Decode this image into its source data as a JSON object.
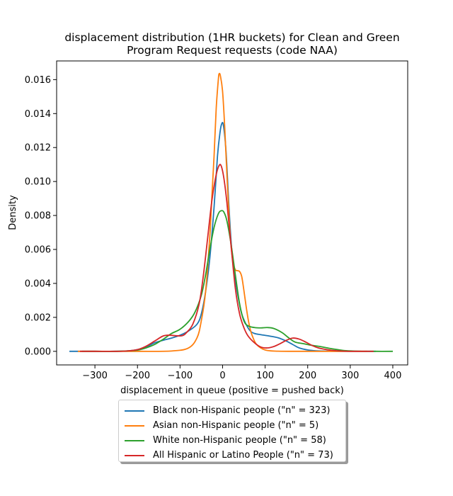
{
  "chart_data": {
    "type": "line",
    "title": "displacement distribution (1HR buckets) for Clean and Green\nProgram Request requests (code NAA)",
    "title_lines": [
      "displacement distribution (1HR buckets) for Clean and Green",
      "Program Request requests (code NAA)"
    ],
    "xlabel": "displacement in queue (positive = pushed back)",
    "ylabel": "Density",
    "xlim": [
      -390,
      435
    ],
    "ylim": [
      -0.0008,
      0.0171
    ],
    "xticks": [
      -300,
      -200,
      -100,
      0,
      100,
      200,
      300,
      400
    ],
    "xtick_labels": [
      "−300",
      "−200",
      "−100",
      "0",
      "100",
      "200",
      "300",
      "400"
    ],
    "yticks": [
      0.0,
      0.002,
      0.004,
      0.006,
      0.008,
      0.01,
      0.012,
      0.014,
      0.016
    ],
    "ytick_labels": [
      "0.000",
      "0.002",
      "0.004",
      "0.006",
      "0.008",
      "0.010",
      "0.012",
      "0.014",
      "0.016"
    ],
    "grid": false,
    "legend_position": "below",
    "series": [
      {
        "name": "Black non-Hispanic people (\"n\" = 323)",
        "color": "#1f77b4",
        "points": [
          [
            -360,
            0
          ],
          [
            -300,
            0
          ],
          [
            -250,
            0
          ],
          [
            -220,
            3e-05
          ],
          [
            -200,
            0.0001
          ],
          [
            -180,
            0.00025
          ],
          [
            -160,
            0.0005
          ],
          [
            -140,
            0.00065
          ],
          [
            -120,
            0.00078
          ],
          [
            -100,
            0.00095
          ],
          [
            -80,
            0.0012
          ],
          [
            -60,
            0.0016
          ],
          [
            -50,
            0.0022
          ],
          [
            -40,
            0.0035
          ],
          [
            -30,
            0.0055
          ],
          [
            -20,
            0.0085
          ],
          [
            -12,
            0.0115
          ],
          [
            -6,
            0.0129
          ],
          [
            -2,
            0.0134
          ],
          [
            2,
            0.0133
          ],
          [
            8,
            0.0118
          ],
          [
            15,
            0.0085
          ],
          [
            22,
            0.0058
          ],
          [
            30,
            0.0042
          ],
          [
            38,
            0.003
          ],
          [
            45,
            0.0022
          ],
          [
            55,
            0.0016
          ],
          [
            65,
            0.0012
          ],
          [
            75,
            0.00105
          ],
          [
            90,
            0.00098
          ],
          [
            110,
            0.0009
          ],
          [
            130,
            0.0008
          ],
          [
            150,
            0.0006
          ],
          [
            165,
            0.0004
          ],
          [
            180,
            0.0002
          ],
          [
            200,
            8e-05
          ],
          [
            220,
            3e-05
          ],
          [
            250,
            1e-05
          ],
          [
            300,
            0
          ],
          [
            360,
            0
          ]
        ]
      },
      {
        "name": "Asian non-Hispanic people (\"n\" = 5)",
        "color": "#ff7f0e",
        "points": [
          [
            -340,
            0
          ],
          [
            -300,
            0
          ],
          [
            -200,
            0
          ],
          [
            -120,
            2e-05
          ],
          [
            -80,
            0.0002
          ],
          [
            -60,
            0.0008
          ],
          [
            -50,
            0.0018
          ],
          [
            -40,
            0.0035
          ],
          [
            -30,
            0.0068
          ],
          [
            -25,
            0.0092
          ],
          [
            -20,
            0.0115
          ],
          [
            -15,
            0.0143
          ],
          [
            -10,
            0.016
          ],
          [
            -8,
            0.01635
          ],
          [
            -5,
            0.0162
          ],
          [
            0,
            0.0153
          ],
          [
            5,
            0.0132
          ],
          [
            10,
            0.0105
          ],
          [
            15,
            0.008
          ],
          [
            20,
            0.0062
          ],
          [
            25,
            0.0052
          ],
          [
            30,
            0.0048
          ],
          [
            35,
            0.00475
          ],
          [
            40,
            0.0047
          ],
          [
            45,
            0.0044
          ],
          [
            50,
            0.0036
          ],
          [
            55,
            0.0027
          ],
          [
            60,
            0.0019
          ],
          [
            65,
            0.0013
          ],
          [
            70,
            0.0009
          ],
          [
            80,
            0.0004
          ],
          [
            100,
            8e-05
          ],
          [
            130,
            1e-05
          ],
          [
            200,
            0
          ],
          [
            300,
            0
          ],
          [
            340,
            0
          ]
        ]
      },
      {
        "name": "White non-Hispanic people (\"n\" = 58)",
        "color": "#2ca02c",
        "points": [
          [
            -330,
            0
          ],
          [
            -300,
            0
          ],
          [
            -250,
            0
          ],
          [
            -220,
            3e-05
          ],
          [
            -200,
            7e-05
          ],
          [
            -180,
            0.0002
          ],
          [
            -160,
            0.0004
          ],
          [
            -140,
            0.0007
          ],
          [
            -120,
            0.00105
          ],
          [
            -100,
            0.0013
          ],
          [
            -80,
            0.00175
          ],
          [
            -65,
            0.0023
          ],
          [
            -50,
            0.0033
          ],
          [
            -40,
            0.0045
          ],
          [
            -30,
            0.006
          ],
          [
            -20,
            0.0073
          ],
          [
            -10,
            0.0081
          ],
          [
            -3,
            0.00828
          ],
          [
            3,
            0.0082
          ],
          [
            10,
            0.0077
          ],
          [
            20,
            0.0063
          ],
          [
            30,
            0.0045
          ],
          [
            40,
            0.0028
          ],
          [
            50,
            0.0018
          ],
          [
            60,
            0.0015
          ],
          [
            75,
            0.0014
          ],
          [
            90,
            0.00138
          ],
          [
            105,
            0.0014
          ],
          [
            120,
            0.00135
          ],
          [
            140,
            0.0011
          ],
          [
            155,
            0.0008
          ],
          [
            170,
            0.00055
          ],
          [
            190,
            0.00045
          ],
          [
            210,
            0.00035
          ],
          [
            230,
            0.00028
          ],
          [
            250,
            0.00018
          ],
          [
            270,
            0.0001
          ],
          [
            290,
            4e-05
          ],
          [
            320,
            1e-05
          ],
          [
            360,
            0
          ],
          [
            400,
            0
          ]
        ]
      },
      {
        "name": "All Hispanic or Latino People (\"n\" = 73)",
        "color": "#d62728",
        "points": [
          [
            -335,
            0
          ],
          [
            -300,
            0
          ],
          [
            -250,
            0
          ],
          [
            -220,
            3e-05
          ],
          [
            -200,
            0.0001
          ],
          [
            -180,
            0.0003
          ],
          [
            -160,
            0.0006
          ],
          [
            -140,
            0.0009
          ],
          [
            -125,
            0.00095
          ],
          [
            -110,
            0.00092
          ],
          [
            -95,
            0.00092
          ],
          [
            -85,
            0.0011
          ],
          [
            -70,
            0.0016
          ],
          [
            -55,
            0.0028
          ],
          [
            -45,
            0.0045
          ],
          [
            -35,
            0.0067
          ],
          [
            -25,
            0.0089
          ],
          [
            -15,
            0.0104
          ],
          [
            -8,
            0.01095
          ],
          [
            -3,
            0.0109
          ],
          [
            3,
            0.0102
          ],
          [
            10,
            0.0088
          ],
          [
            20,
            0.0062
          ],
          [
            30,
            0.0037
          ],
          [
            40,
            0.0022
          ],
          [
            50,
            0.0014
          ],
          [
            60,
            0.0009
          ],
          [
            75,
            0.0005
          ],
          [
            90,
            0.00025
          ],
          [
            105,
            0.0002
          ],
          [
            120,
            0.00028
          ],
          [
            135,
            0.00045
          ],
          [
            150,
            0.00065
          ],
          [
            165,
            0.00078
          ],
          [
            180,
            0.00072
          ],
          [
            195,
            0.00055
          ],
          [
            210,
            0.00035
          ],
          [
            225,
            0.0002
          ],
          [
            245,
            0.0001
          ],
          [
            265,
            4e-05
          ],
          [
            290,
            1e-05
          ],
          [
            330,
            0
          ],
          [
            355,
            0
          ]
        ]
      }
    ]
  }
}
